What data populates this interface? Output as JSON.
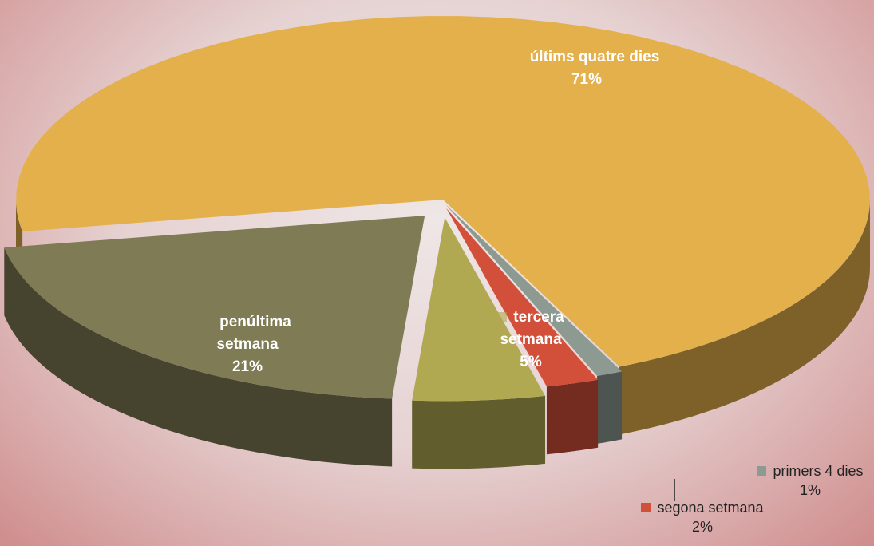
{
  "chart_data": {
    "type": "pie",
    "categories": [
      "últims quatre dies",
      "primers 4 dies",
      "segona setmana",
      "tercera setmana",
      "penúltima setmana"
    ],
    "values": [
      71,
      1,
      2,
      5,
      21
    ],
    "value_labels": [
      "71%",
      "1%",
      "2%",
      "5%",
      "21%"
    ],
    "colors": [
      "#e3b04b",
      "#8d9a92",
      "#d2503a",
      "#b1a951",
      "#7f7b55"
    ]
  }
}
